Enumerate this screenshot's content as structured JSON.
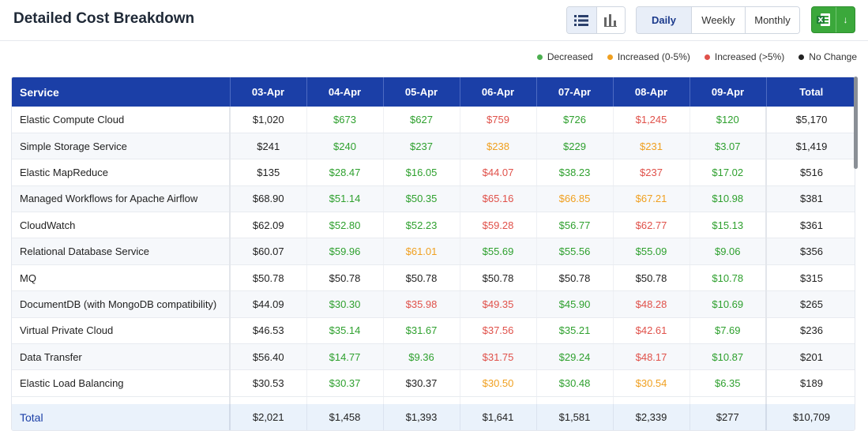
{
  "header": {
    "title": "Detailed Cost Breakdown",
    "periods": [
      "Daily",
      "Weekly",
      "Monthly"
    ],
    "active_period": "Daily",
    "view_icons": [
      "list-icon",
      "bar-chart-icon"
    ],
    "export_icons": [
      "excel-icon",
      "download-arrow-icon"
    ]
  },
  "legend": [
    {
      "label": "Decreased",
      "color": "#4caf50"
    },
    {
      "label": "Increased (0-5%)",
      "color": "#f0a020"
    },
    {
      "label": "Increased (>5%)",
      "color": "#e0514a"
    },
    {
      "label": "No Change",
      "color": "#222222"
    }
  ],
  "table": {
    "columns": [
      "Service",
      "03-Apr",
      "04-Apr",
      "05-Apr",
      "06-Apr",
      "07-Apr",
      "08-Apr",
      "09-Apr",
      "Total"
    ],
    "rows": [
      {
        "service": "Elastic Compute Cloud",
        "values": [
          "$1,020",
          "$673",
          "$627",
          "$759",
          "$726",
          "$1,245",
          "$120"
        ],
        "status": [
          "none",
          "dec",
          "dec",
          "inc-l",
          "dec",
          "inc-l",
          "dec"
        ],
        "total": "$5,170"
      },
      {
        "service": "Simple Storage Service",
        "values": [
          "$241",
          "$240",
          "$237",
          "$238",
          "$229",
          "$231",
          "$3.07"
        ],
        "status": [
          "none",
          "dec",
          "dec",
          "inc-s",
          "dec",
          "inc-s",
          "dec"
        ],
        "total": "$1,419"
      },
      {
        "service": "Elastic MapReduce",
        "values": [
          "$135",
          "$28.47",
          "$16.05",
          "$44.07",
          "$38.23",
          "$237",
          "$17.02"
        ],
        "status": [
          "none",
          "dec",
          "dec",
          "inc-l",
          "dec",
          "inc-l",
          "dec"
        ],
        "total": "$516"
      },
      {
        "service": "Managed Workflows for Apache Airflow",
        "values": [
          "$68.90",
          "$51.14",
          "$50.35",
          "$65.16",
          "$66.85",
          "$67.21",
          "$10.98"
        ],
        "status": [
          "none",
          "dec",
          "dec",
          "inc-l",
          "inc-s",
          "inc-s",
          "dec"
        ],
        "total": "$381"
      },
      {
        "service": "CloudWatch",
        "values": [
          "$62.09",
          "$52.80",
          "$52.23",
          "$59.28",
          "$56.77",
          "$62.77",
          "$15.13"
        ],
        "status": [
          "none",
          "dec",
          "dec",
          "inc-l",
          "dec",
          "inc-l",
          "dec"
        ],
        "total": "$361"
      },
      {
        "service": "Relational Database Service",
        "values": [
          "$60.07",
          "$59.96",
          "$61.01",
          "$55.69",
          "$55.56",
          "$55.09",
          "$9.06"
        ],
        "status": [
          "none",
          "dec",
          "inc-s",
          "dec",
          "dec",
          "dec",
          "dec"
        ],
        "total": "$356"
      },
      {
        "service": "MQ",
        "values": [
          "$50.78",
          "$50.78",
          "$50.78",
          "$50.78",
          "$50.78",
          "$50.78",
          "$10.78"
        ],
        "status": [
          "none",
          "none",
          "none",
          "none",
          "none",
          "none",
          "dec"
        ],
        "total": "$315"
      },
      {
        "service": "DocumentDB (with MongoDB compatibility)",
        "values": [
          "$44.09",
          "$30.30",
          "$35.98",
          "$49.35",
          "$45.90",
          "$48.28",
          "$10.69"
        ],
        "status": [
          "none",
          "dec",
          "inc-l",
          "inc-l",
          "dec",
          "inc-l",
          "dec"
        ],
        "total": "$265"
      },
      {
        "service": "Virtual Private Cloud",
        "values": [
          "$46.53",
          "$35.14",
          "$31.67",
          "$37.56",
          "$35.21",
          "$42.61",
          "$7.69"
        ],
        "status": [
          "none",
          "dec",
          "dec",
          "inc-l",
          "dec",
          "inc-l",
          "dec"
        ],
        "total": "$236"
      },
      {
        "service": "Data Transfer",
        "values": [
          "$56.40",
          "$14.77",
          "$9.36",
          "$31.75",
          "$29.24",
          "$48.17",
          "$10.87"
        ],
        "status": [
          "none",
          "dec",
          "dec",
          "inc-l",
          "dec",
          "inc-l",
          "dec"
        ],
        "total": "$201"
      },
      {
        "service": "Elastic Load Balancing",
        "values": [
          "$30.53",
          "$30.37",
          "$30.37",
          "$30.50",
          "$30.48",
          "$30.54",
          "$6.35"
        ],
        "status": [
          "none",
          "dec",
          "none",
          "inc-s",
          "dec",
          "inc-s",
          "dec"
        ],
        "total": "$189"
      }
    ],
    "footer": {
      "label": "Total",
      "values": [
        "$2,021",
        "$1,458",
        "$1,393",
        "$1,641",
        "$1,581",
        "$2,339",
        "$277"
      ],
      "total": "$10,709"
    }
  }
}
